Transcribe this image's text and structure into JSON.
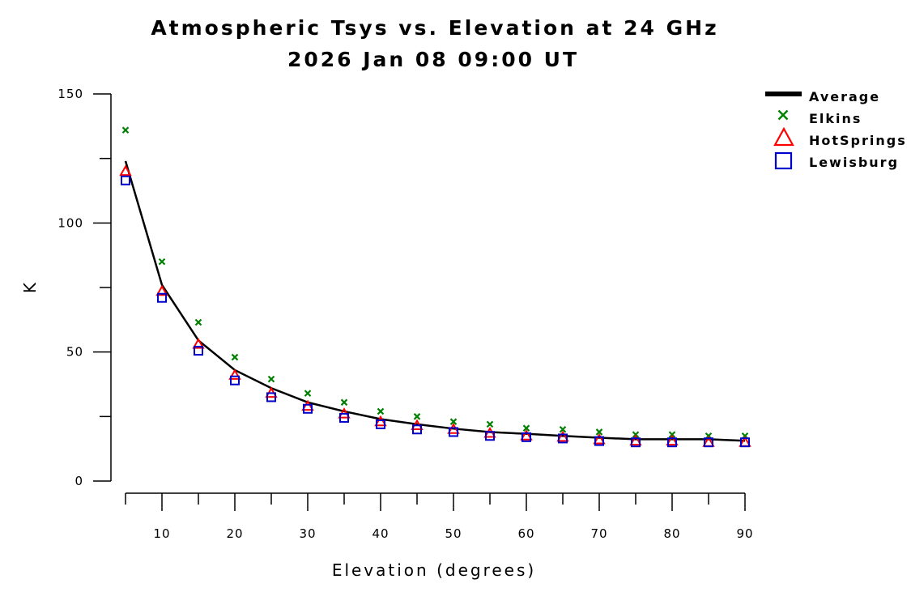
{
  "chart_data": {
    "type": "scatter",
    "title": "Atmospheric Tsys vs. Elevation at 24 GHz",
    "subtitle": "2026 Jan 08 09:00 UT",
    "xlabel": "Elevation (degrees)",
    "ylabel": "K",
    "xlim": [
      5,
      90
    ],
    "ylim": [
      0,
      150
    ],
    "xticks": [
      10,
      20,
      30,
      40,
      50,
      60,
      70,
      80,
      90
    ],
    "xtick_labels": [
      "10",
      "20",
      "30",
      "40",
      "50",
      "60",
      "70",
      "80",
      "90"
    ],
    "yticks": [
      0,
      50,
      100,
      150
    ],
    "ytick_labels": [
      "0",
      "50",
      "100",
      "150"
    ],
    "x": [
      5,
      10,
      15,
      20,
      25,
      30,
      35,
      40,
      45,
      50,
      55,
      60,
      65,
      70,
      75,
      80,
      85,
      90
    ],
    "legend_position": "top-right",
    "grid": false,
    "series": [
      {
        "name": "Average",
        "marker": "line",
        "color": "#000000",
        "values": [
          124,
          76,
          54.5,
          43,
          36,
          30.5,
          27,
          24,
          22,
          20.3,
          19,
          18.3,
          17.5,
          16.8,
          16.2,
          16.2,
          16.2,
          15.6
        ]
      },
      {
        "name": "Elkins",
        "marker": "x",
        "color": "#008000",
        "values": [
          136,
          85,
          61.5,
          48,
          39.5,
          34,
          30.5,
          27,
          25,
          23,
          22,
          20.5,
          20,
          19,
          18,
          18,
          17.5,
          17.5
        ]
      },
      {
        "name": "HotSprings",
        "marker": "triangle",
        "color": "#ff0000",
        "values": [
          120,
          73.5,
          53,
          41,
          34,
          29,
          26,
          23,
          21.5,
          20,
          18.5,
          17.5,
          17,
          16,
          15.5,
          15.5,
          15,
          15
        ]
      },
      {
        "name": "Lewisburg",
        "marker": "square",
        "color": "#0000cc",
        "values": [
          116.5,
          71,
          50.5,
          39,
          32.5,
          28,
          24.5,
          22,
          20,
          19,
          17.5,
          17,
          16.5,
          15.5,
          15,
          15,
          15,
          15
        ]
      }
    ]
  }
}
